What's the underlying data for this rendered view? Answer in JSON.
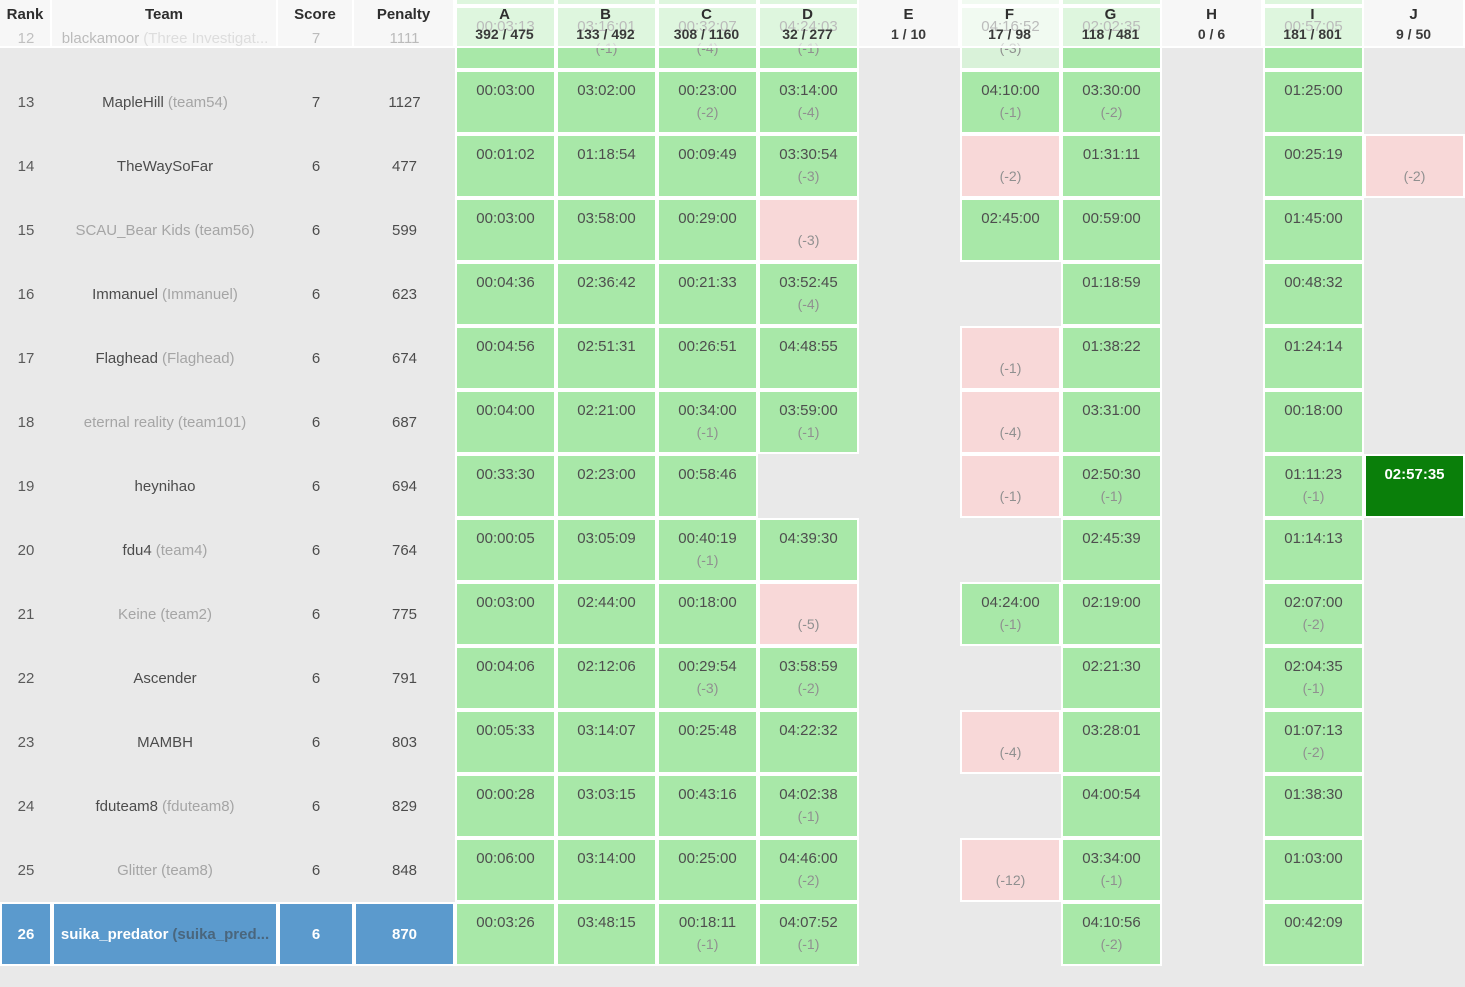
{
  "header": {
    "rank_label": "Rank",
    "team_label": "Team",
    "score_label": "Score",
    "penalty_label": "Penalty",
    "problems": [
      {
        "label": "A",
        "stats": "392 / 475"
      },
      {
        "label": "B",
        "stats": "133 / 492"
      },
      {
        "label": "C",
        "stats": "308 / 1160"
      },
      {
        "label": "D",
        "stats": "32 / 277"
      },
      {
        "label": "E",
        "stats": "1 / 10"
      },
      {
        "label": "F",
        "stats": "17 / 98"
      },
      {
        "label": "G",
        "stats": "118 / 481"
      },
      {
        "label": "H",
        "stats": "0 / 6"
      },
      {
        "label": "I",
        "stats": "181 / 801"
      },
      {
        "label": "J",
        "stats": "9 / 50"
      }
    ]
  },
  "colors": {
    "background": "#e9e9e9",
    "solved": "#a8e8a8",
    "solved_light": "#d9f2d9",
    "failed": "#f8d8d8",
    "first_solve": "#0a7f0a",
    "highlight_row": "#5b9acd",
    "header_overlay": "rgba(255,255,255,0.62)"
  },
  "top_sliver": {
    "cells": [
      "s",
      "s",
      "s",
      "s",
      "",
      "sl",
      "s",
      "",
      "s",
      ""
    ]
  },
  "rows": [
    {
      "rank": "12",
      "team": "blackamoor",
      "affil": "(Three Investigat...",
      "score": "7",
      "penalty": "1111",
      "gray": false,
      "highlight": false,
      "cells": [
        {
          "st": "s",
          "t": "00:03:13"
        },
        {
          "st": "s",
          "t": "03:16:01",
          "x": "(-1)"
        },
        {
          "st": "s",
          "t": "00:32:07",
          "x": "(-4)"
        },
        {
          "st": "s",
          "t": "04:24:03",
          "x": "(-1)"
        },
        {},
        {
          "st": "sl",
          "t": "04:16:52",
          "x": "(-3)"
        },
        {
          "st": "s",
          "t": "02:02:35"
        },
        {},
        {
          "st": "s",
          "t": "00:57:05"
        },
        {}
      ]
    },
    {
      "rank": "13",
      "team": "MapleHill",
      "affil": "(team54)",
      "score": "7",
      "penalty": "1127",
      "gray": false,
      "highlight": false,
      "cells": [
        {
          "st": "s",
          "t": "00:03:00"
        },
        {
          "st": "s",
          "t": "03:02:00"
        },
        {
          "st": "s",
          "t": "00:23:00",
          "x": "(-2)"
        },
        {
          "st": "s",
          "t": "03:14:00",
          "x": "(-4)"
        },
        {},
        {
          "st": "s",
          "t": "04:10:00",
          "x": "(-1)"
        },
        {
          "st": "s",
          "t": "03:30:00",
          "x": "(-2)"
        },
        {},
        {
          "st": "s",
          "t": "01:25:00"
        },
        {}
      ]
    },
    {
      "rank": "14",
      "team": "TheWaySoFar",
      "affil": "",
      "score": "6",
      "penalty": "477",
      "gray": false,
      "highlight": false,
      "cells": [
        {
          "st": "s",
          "t": "00:01:02"
        },
        {
          "st": "s",
          "t": "01:18:54"
        },
        {
          "st": "s",
          "t": "00:09:49"
        },
        {
          "st": "s",
          "t": "03:30:54",
          "x": "(-3)"
        },
        {},
        {
          "st": "f",
          "x": "(-2)"
        },
        {
          "st": "s",
          "t": "01:31:11"
        },
        {},
        {
          "st": "s",
          "t": "00:25:19"
        },
        {
          "st": "f",
          "x": "(-2)"
        }
      ]
    },
    {
      "rank": "15",
      "team": "SCAU_Bear Kids",
      "affil": "(team56)",
      "score": "6",
      "penalty": "599",
      "gray": true,
      "highlight": false,
      "cells": [
        {
          "st": "s",
          "t": "00:03:00"
        },
        {
          "st": "s",
          "t": "03:58:00"
        },
        {
          "st": "s",
          "t": "00:29:00"
        },
        {
          "st": "f",
          "x": "(-3)"
        },
        {},
        {
          "st": "s",
          "t": "02:45:00"
        },
        {
          "st": "s",
          "t": "00:59:00"
        },
        {},
        {
          "st": "s",
          "t": "01:45:00"
        },
        {}
      ]
    },
    {
      "rank": "16",
      "team": "Immanuel",
      "affil": "(Immanuel)",
      "score": "6",
      "penalty": "623",
      "gray": false,
      "highlight": false,
      "cells": [
        {
          "st": "s",
          "t": "00:04:36"
        },
        {
          "st": "s",
          "t": "02:36:42"
        },
        {
          "st": "s",
          "t": "00:21:33"
        },
        {
          "st": "s",
          "t": "03:52:45",
          "x": "(-4)"
        },
        {},
        {},
        {
          "st": "s",
          "t": "01:18:59"
        },
        {},
        {
          "st": "s",
          "t": "00:48:32"
        },
        {}
      ]
    },
    {
      "rank": "17",
      "team": "Flaghead",
      "affil": "(Flaghead)",
      "score": "6",
      "penalty": "674",
      "gray": false,
      "highlight": false,
      "cells": [
        {
          "st": "s",
          "t": "00:04:56"
        },
        {
          "st": "s",
          "t": "02:51:31"
        },
        {
          "st": "s",
          "t": "00:26:51"
        },
        {
          "st": "s",
          "t": "04:48:55"
        },
        {},
        {
          "st": "f",
          "x": "(-1)"
        },
        {
          "st": "s",
          "t": "01:38:22"
        },
        {},
        {
          "st": "s",
          "t": "01:24:14"
        },
        {}
      ]
    },
    {
      "rank": "18",
      "team": "eternal reality",
      "affil": "(team101)",
      "score": "6",
      "penalty": "687",
      "gray": true,
      "highlight": false,
      "cells": [
        {
          "st": "s",
          "t": "00:04:00"
        },
        {
          "st": "s",
          "t": "02:21:00"
        },
        {
          "st": "s",
          "t": "00:34:00",
          "x": "(-1)"
        },
        {
          "st": "s",
          "t": "03:59:00",
          "x": "(-1)"
        },
        {},
        {
          "st": "f",
          "x": "(-4)"
        },
        {
          "st": "s",
          "t": "03:31:00"
        },
        {},
        {
          "st": "s",
          "t": "00:18:00"
        },
        {}
      ]
    },
    {
      "rank": "19",
      "team": "heynihao",
      "affil": "",
      "score": "6",
      "penalty": "694",
      "gray": false,
      "highlight": false,
      "cells": [
        {
          "st": "s",
          "t": "00:33:30"
        },
        {
          "st": "s",
          "t": "02:23:00"
        },
        {
          "st": "s",
          "t": "00:58:46"
        },
        {},
        {},
        {
          "st": "f",
          "x": "(-1)"
        },
        {
          "st": "s",
          "t": "02:50:30",
          "x": "(-1)"
        },
        {},
        {
          "st": "s",
          "t": "01:11:23",
          "x": "(-1)"
        },
        {
          "st": "fs",
          "t": "02:57:35"
        }
      ]
    },
    {
      "rank": "20",
      "team": "fdu4",
      "affil": "(team4)",
      "score": "6",
      "penalty": "764",
      "gray": false,
      "highlight": false,
      "cells": [
        {
          "st": "s",
          "t": "00:00:05"
        },
        {
          "st": "s",
          "t": "03:05:09"
        },
        {
          "st": "s",
          "t": "00:40:19",
          "x": "(-1)"
        },
        {
          "st": "s",
          "t": "04:39:30"
        },
        {},
        {},
        {
          "st": "s",
          "t": "02:45:39"
        },
        {},
        {
          "st": "s",
          "t": "01:14:13"
        },
        {}
      ]
    },
    {
      "rank": "21",
      "team": "Keine",
      "affil": "(team2)",
      "score": "6",
      "penalty": "775",
      "gray": true,
      "highlight": false,
      "cells": [
        {
          "st": "s",
          "t": "00:03:00"
        },
        {
          "st": "s",
          "t": "02:44:00"
        },
        {
          "st": "s",
          "t": "00:18:00"
        },
        {
          "st": "f",
          "x": "(-5)"
        },
        {},
        {
          "st": "s",
          "t": "04:24:00",
          "x": "(-1)"
        },
        {
          "st": "s",
          "t": "02:19:00"
        },
        {},
        {
          "st": "s",
          "t": "02:07:00",
          "x": "(-2)"
        },
        {}
      ]
    },
    {
      "rank": "22",
      "team": "Ascender",
      "affil": "",
      "score": "6",
      "penalty": "791",
      "gray": false,
      "highlight": false,
      "cells": [
        {
          "st": "s",
          "t": "00:04:06"
        },
        {
          "st": "s",
          "t": "02:12:06"
        },
        {
          "st": "s",
          "t": "00:29:54",
          "x": "(-3)"
        },
        {
          "st": "s",
          "t": "03:58:59",
          "x": "(-2)"
        },
        {},
        {},
        {
          "st": "s",
          "t": "02:21:30"
        },
        {},
        {
          "st": "s",
          "t": "02:04:35",
          "x": "(-1)"
        },
        {}
      ]
    },
    {
      "rank": "23",
      "team": "MAMBH",
      "affil": "",
      "score": "6",
      "penalty": "803",
      "gray": false,
      "highlight": false,
      "cells": [
        {
          "st": "s",
          "t": "00:05:33"
        },
        {
          "st": "s",
          "t": "03:14:07"
        },
        {
          "st": "s",
          "t": "00:25:48"
        },
        {
          "st": "s",
          "t": "04:22:32"
        },
        {},
        {
          "st": "f",
          "x": "(-4)"
        },
        {
          "st": "s",
          "t": "03:28:01"
        },
        {},
        {
          "st": "s",
          "t": "01:07:13",
          "x": "(-2)"
        },
        {}
      ]
    },
    {
      "rank": "24",
      "team": "fduteam8",
      "affil": "(fduteam8)",
      "score": "6",
      "penalty": "829",
      "gray": false,
      "highlight": false,
      "cells": [
        {
          "st": "s",
          "t": "00:00:28"
        },
        {
          "st": "s",
          "t": "03:03:15"
        },
        {
          "st": "s",
          "t": "00:43:16"
        },
        {
          "st": "s",
          "t": "04:02:38",
          "x": "(-1)"
        },
        {},
        {},
        {
          "st": "s",
          "t": "04:00:54"
        },
        {},
        {
          "st": "s",
          "t": "01:38:30"
        },
        {}
      ]
    },
    {
      "rank": "25",
      "team": "Glitter",
      "affil": "(team8)",
      "score": "6",
      "penalty": "848",
      "gray": true,
      "highlight": false,
      "cells": [
        {
          "st": "s",
          "t": "00:06:00"
        },
        {
          "st": "s",
          "t": "03:14:00"
        },
        {
          "st": "s",
          "t": "00:25:00"
        },
        {
          "st": "s",
          "t": "04:46:00",
          "x": "(-2)"
        },
        {},
        {
          "st": "f",
          "x": "(-12)"
        },
        {
          "st": "s",
          "t": "03:34:00",
          "x": "(-1)"
        },
        {},
        {
          "st": "s",
          "t": "01:03:00"
        },
        {}
      ]
    },
    {
      "rank": "26",
      "team": "suika_predator",
      "affil": "(suika_pred...",
      "score": "6",
      "penalty": "870",
      "gray": false,
      "highlight": true,
      "cells": [
        {
          "st": "s",
          "t": "00:03:26"
        },
        {
          "st": "s",
          "t": "03:48:15"
        },
        {
          "st": "s",
          "t": "00:18:11",
          "x": "(-1)"
        },
        {
          "st": "s",
          "t": "04:07:52",
          "x": "(-1)"
        },
        {},
        {},
        {
          "st": "s",
          "t": "04:10:56",
          "x": "(-2)"
        },
        {},
        {
          "st": "s",
          "t": "00:42:09"
        },
        {}
      ]
    }
  ]
}
